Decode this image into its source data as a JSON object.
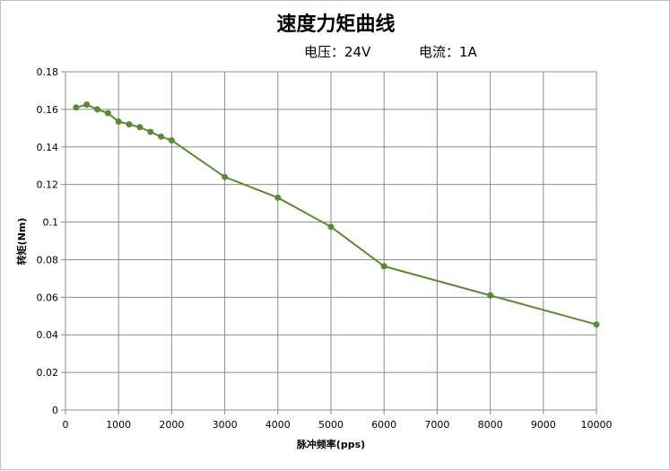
{
  "chart_data": {
    "type": "line",
    "title": "速度力矩曲线",
    "subtitle_voltage": "电压：24V",
    "subtitle_current": "电流：1A",
    "xlabel": "脉冲频率(pps)",
    "ylabel": "转矩(Nm)",
    "xlim": [
      0,
      10000
    ],
    "ylim": [
      0,
      0.18
    ],
    "xticks": [
      0,
      1000,
      2000,
      3000,
      4000,
      5000,
      6000,
      7000,
      8000,
      9000,
      10000
    ],
    "yticks": [
      0,
      0.02,
      0.04,
      0.06,
      0.08,
      0.1,
      0.12,
      0.14,
      0.16,
      0.18
    ],
    "ytick_labels": [
      "0",
      "0.02",
      "0.04",
      "0.06",
      "0.08",
      "0.1",
      "0.12",
      "0.14",
      "0.16",
      "0.18"
    ],
    "grid": true,
    "series": [
      {
        "color": "#5b8a35",
        "x": [
          200,
          400,
          600,
          800,
          1000,
          1200,
          1400,
          1600,
          1800,
          2000,
          3000,
          4000,
          5000,
          6000,
          8000,
          10000
        ],
        "y": [
          0.161,
          0.1625,
          0.16,
          0.158,
          0.1535,
          0.152,
          0.1505,
          0.148,
          0.1455,
          0.1435,
          0.124,
          0.113,
          0.0975,
          0.0765,
          0.061,
          0.0455
        ]
      }
    ]
  }
}
